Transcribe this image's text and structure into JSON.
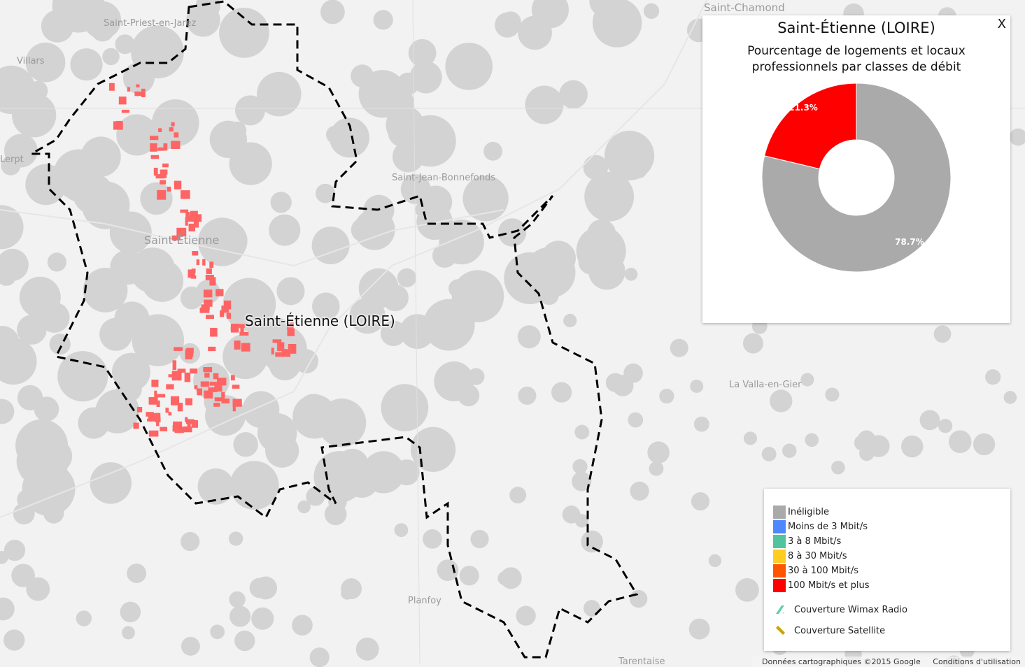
{
  "map": {
    "place_labels": [
      "Saint-Priest-en-Jarez",
      "Villars",
      "Lerpt",
      "Saint-Étienne",
      "Saint-Jean-Bonnefonds",
      "Saint-Chamond",
      "La Valla-en-Gier",
      "Planfoy",
      "Tarentaise"
    ],
    "selected_commune": "Saint-Étienne (LOIRE)"
  },
  "chart_panel": {
    "title": "Saint-Étienne (LOIRE)",
    "subtitle": "Pourcentage de logements et locaux professionnels par classes de débit",
    "close_label": "X"
  },
  "chart_data": {
    "type": "pie",
    "donut": true,
    "title": "Saint-Étienne (LOIRE)",
    "subtitle": "Pourcentage de logements et locaux professionnels par classes de débit",
    "slices": [
      {
        "label": "Inéligible",
        "value": 78.7,
        "display": "78.7%",
        "color": "#aaaaaa"
      },
      {
        "label": "100 Mbit/s et plus",
        "value": 21.3,
        "display": "21.3%",
        "color": "#ff0000"
      }
    ]
  },
  "legend": {
    "items": [
      {
        "label": "Inéligible",
        "color": "#aaaaaa"
      },
      {
        "label": "Moins de 3 Mbit/s",
        "color": "#4d88ff"
      },
      {
        "label": "3 à 8 Mbit/s",
        "color": "#4fc49d"
      },
      {
        "label": "8 à 30 Mbit/s",
        "color": "#ffcc22"
      },
      {
        "label": "30 à 100 Mbit/s",
        "color": "#ff5500"
      },
      {
        "label": "100 Mbit/s et plus",
        "color": "#ff0000"
      }
    ],
    "coverage": [
      {
        "label": "Couverture Wimax Radio",
        "color": "#5fcfae",
        "icon": "hatch-icon"
      },
      {
        "label": "Couverture Satellite",
        "color": "#c9a400",
        "icon": "hatch-icon"
      }
    ]
  },
  "footer": {
    "attribution": "Données cartographiques ©2015 Google",
    "terms": "Conditions d'utilisation"
  }
}
